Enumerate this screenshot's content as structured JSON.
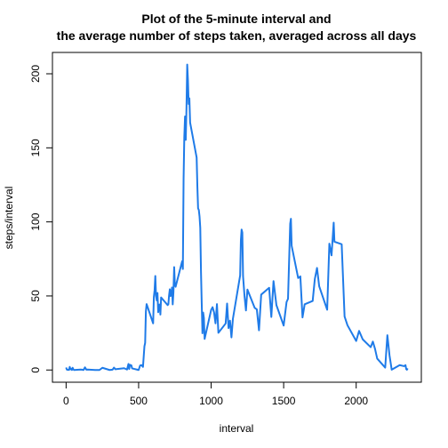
{
  "chart_data": {
    "type": "line",
    "title": [
      "Plot of the 5-minute interval and",
      "the average number of steps taken, averaged across all days"
    ],
    "xlabel": "interval",
    "ylabel": "steps/interval",
    "x": [
      0,
      5,
      10,
      15,
      20,
      25,
      30,
      35,
      40,
      45,
      50,
      55,
      100,
      110,
      120,
      130,
      140,
      150,
      200,
      230,
      250,
      300,
      320,
      330,
      340,
      400,
      420,
      430,
      435,
      440,
      450,
      455,
      500,
      510,
      520,
      530,
      540,
      545,
      550,
      555,
      600,
      605,
      610,
      615,
      620,
      625,
      630,
      635,
      640,
      645,
      650,
      655,
      700,
      705,
      710,
      715,
      720,
      725,
      730,
      735,
      740,
      745,
      750,
      755,
      800,
      805,
      810,
      815,
      820,
      825,
      830,
      835,
      840,
      845,
      850,
      855,
      900,
      905,
      910,
      915,
      920,
      925,
      930,
      935,
      940,
      945,
      950,
      955,
      1000,
      1010,
      1020,
      1030,
      1040,
      1050,
      1100,
      1110,
      1120,
      1130,
      1140,
      1150,
      1200,
      1205,
      1210,
      1215,
      1220,
      1230,
      1240,
      1250,
      1300,
      1315,
      1330,
      1345,
      1400,
      1415,
      1430,
      1450,
      1500,
      1520,
      1530,
      1545,
      1550,
      1555,
      1600,
      1615,
      1630,
      1645,
      1700,
      1715,
      1730,
      1745,
      1800,
      1815,
      1830,
      1845,
      1850,
      1900,
      1920,
      1940,
      2000,
      2020,
      2045,
      2100,
      2115,
      2130,
      2145,
      2200,
      2215,
      2230,
      2245,
      2300,
      2330,
      2340,
      2345,
      2350,
      2355
    ],
    "series": [
      {
        "name": "steps",
        "color": "#1f7be8",
        "values": [
          1.7,
          0.3,
          0.1,
          0.2,
          0.1,
          2.1,
          0.5,
          0.9,
          0,
          1.5,
          0.4,
          0,
          0.3,
          0.2,
          0,
          1.8,
          0.2,
          0.3,
          0,
          0,
          1.5,
          0,
          0.2,
          1.6,
          0.5,
          1.2,
          0.3,
          4.1,
          0.7,
          3.5,
          3.1,
          1.1,
          0,
          3,
          3.3,
          2.1,
          16,
          18.3,
          39.5,
          44.5,
          31.5,
          49.3,
          53.8,
          63.5,
          50,
          47,
          52,
          39,
          44,
          44.2,
          37.4,
          49,
          43.8,
          44.4,
          50.5,
          54.5,
          49.9,
          51,
          55.7,
          44.3,
          52.3,
          69.5,
          57.8,
          56.2,
          73.4,
          68.2,
          129.4,
          157.5,
          171.2,
          155.4,
          177.3,
          206.2,
          195.9,
          179.6,
          183.4,
          167,
          143.5,
          124,
          109.1,
          108.1,
          103.7,
          96,
          66.2,
          45.2,
          24.8,
          38.8,
          35,
          21,
          40.6,
          42.4,
          38.9,
          31.5,
          44.5,
          25.1,
          31.4,
          44.9,
          28.3,
          33.3,
          22,
          34.5,
          63.9,
          87.6,
          94.8,
          92.8,
          63.4,
          50,
          40.2,
          54.3,
          42,
          40.9,
          26.8,
          50.9,
          55.5,
          35.8,
          60,
          43.8,
          30,
          45.9,
          48.1,
          98.7,
          102.1,
          83.9,
          62.1,
          63.2,
          35.5,
          44.4,
          46.6,
          61.5,
          68.9,
          56.5,
          40.7,
          85.3,
          77.4,
          99.5,
          86.6,
          84.9,
          36.1,
          30.2,
          19.6,
          26.4,
          20.7,
          15.4,
          19.2,
          14.2,
          7.7,
          1.6,
          23.5,
          9.75,
          0.2,
          3.3,
          2.6,
          3.3,
          0.6,
          0.2,
          1.1
        ]
      }
    ],
    "xlim": [
      -94.2,
      2449.2
    ],
    "ylim": [
      -8.25,
      214.4
    ],
    "xticks": [
      0,
      500,
      1000,
      1500,
      2000
    ],
    "yticks": [
      0,
      50,
      100,
      150,
      200
    ]
  }
}
